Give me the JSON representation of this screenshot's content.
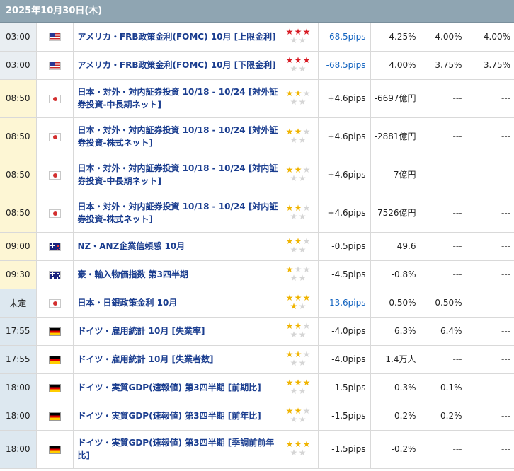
{
  "header": {
    "date": "2025年10月30日(木)"
  },
  "rows": [
    {
      "time": "03:00",
      "band": "gray",
      "flag": "us",
      "event": "アメリカ・FRB政策金利(FOMC) 10月 [上限金利]",
      "importance": 3,
      "star_color": "red",
      "pips": "-68.5pips",
      "pips_blue": true,
      "previous": "4.25%",
      "forecast": "4.00%",
      "actual": "4.00%",
      "size": "r1"
    },
    {
      "time": "03:00",
      "band": "gray",
      "flag": "us",
      "event": "アメリカ・FRB政策金利(FOMC) 10月 [下限金利]",
      "importance": 3,
      "star_color": "red",
      "pips": "-68.5pips",
      "pips_blue": true,
      "previous": "4.00%",
      "forecast": "3.75%",
      "actual": "3.75%",
      "size": "r1"
    },
    {
      "time": "08:50",
      "band": "yellow",
      "flag": "jp",
      "event": "日本・対外・対内証券投資 10/18 - 10/24 [対外証券投資-中長期ネット]",
      "importance": 2,
      "star_color": "gold",
      "pips": "+4.6pips",
      "pips_blue": false,
      "previous": "-6697億円",
      "forecast": "---",
      "actual": "---",
      "size": "r2"
    },
    {
      "time": "08:50",
      "band": "yellow",
      "flag": "jp",
      "event": "日本・対外・対内証券投資 10/18 - 10/24 [対外証券投資-株式ネット]",
      "importance": 2,
      "star_color": "gold",
      "pips": "+4.6pips",
      "pips_blue": false,
      "previous": "-2881億円",
      "forecast": "---",
      "actual": "---",
      "size": "r2"
    },
    {
      "time": "08:50",
      "band": "yellow",
      "flag": "jp",
      "event": "日本・対外・対内証券投資 10/18 - 10/24 [対内証券投資-中長期ネット]",
      "importance": 2,
      "star_color": "gold",
      "pips": "+4.6pips",
      "pips_blue": false,
      "previous": "-7億円",
      "forecast": "---",
      "actual": "---",
      "size": "r2"
    },
    {
      "time": "08:50",
      "band": "yellow",
      "flag": "jp",
      "event": "日本・対外・対内証券投資 10/18 - 10/24 [対内証券投資-株式ネット]",
      "importance": 2,
      "star_color": "gold",
      "pips": "+4.6pips",
      "pips_blue": false,
      "previous": "7526億円",
      "forecast": "---",
      "actual": "---",
      "size": "r2"
    },
    {
      "time": "09:00",
      "band": "yellow",
      "flag": "nz",
      "event": "NZ・ANZ企業信頼感 10月",
      "importance": 2,
      "star_color": "gold",
      "pips": "-0.5pips",
      "pips_blue": false,
      "previous": "49.6",
      "forecast": "---",
      "actual": "---",
      "size": "r1"
    },
    {
      "time": "09:30",
      "band": "yellow",
      "flag": "au",
      "event": "豪・輸入物価指数 第3四半期",
      "importance": 1,
      "star_color": "gold",
      "pips": "-4.5pips",
      "pips_blue": false,
      "previous": "-0.8%",
      "forecast": "---",
      "actual": "---",
      "size": "r1"
    },
    {
      "time": "未定",
      "band": "blue",
      "flag": "jp",
      "event": "日本・日銀政策金利 10月",
      "importance": 4,
      "star_color": "gold",
      "pips": "-13.6pips",
      "pips_blue": true,
      "previous": "0.50%",
      "forecast": "0.50%",
      "actual": "---",
      "size": "r1"
    },
    {
      "time": "17:55",
      "band": "blue",
      "flag": "de",
      "event": "ドイツ・雇用統計 10月 [失業率]",
      "importance": 2,
      "star_color": "gold",
      "pips": "-4.0pips",
      "pips_blue": false,
      "previous": "6.3%",
      "forecast": "6.4%",
      "actual": "---",
      "size": "r1"
    },
    {
      "time": "17:55",
      "band": "blue",
      "flag": "de",
      "event": "ドイツ・雇用統計 10月 [失業者数]",
      "importance": 2,
      "star_color": "gold",
      "pips": "-4.0pips",
      "pips_blue": false,
      "previous": "1.4万人",
      "forecast": "---",
      "actual": "---",
      "size": "r1"
    },
    {
      "time": "18:00",
      "band": "blue",
      "flag": "de",
      "event": "ドイツ・実質GDP(速報値) 第3四半期 [前期比]",
      "importance": 3,
      "star_color": "gold",
      "pips": "-1.5pips",
      "pips_blue": false,
      "previous": "-0.3%",
      "forecast": "0.1%",
      "actual": "---",
      "size": "r1"
    },
    {
      "time": "18:00",
      "band": "blue",
      "flag": "de",
      "event": "ドイツ・実質GDP(速報値) 第3四半期 [前年比]",
      "importance": 2,
      "star_color": "gold",
      "pips": "-1.5pips",
      "pips_blue": false,
      "previous": "0.2%",
      "forecast": "0.2%",
      "actual": "---",
      "size": "r1"
    },
    {
      "time": "18:00",
      "band": "blue",
      "flag": "de",
      "event": "ドイツ・実質GDP(速報値) 第3四半期 [季調前前年比]",
      "importance": 3,
      "star_color": "gold",
      "pips": "-1.5pips",
      "pips_blue": false,
      "previous": "-0.2%",
      "forecast": "---",
      "actual": "---",
      "size": "r2"
    }
  ]
}
